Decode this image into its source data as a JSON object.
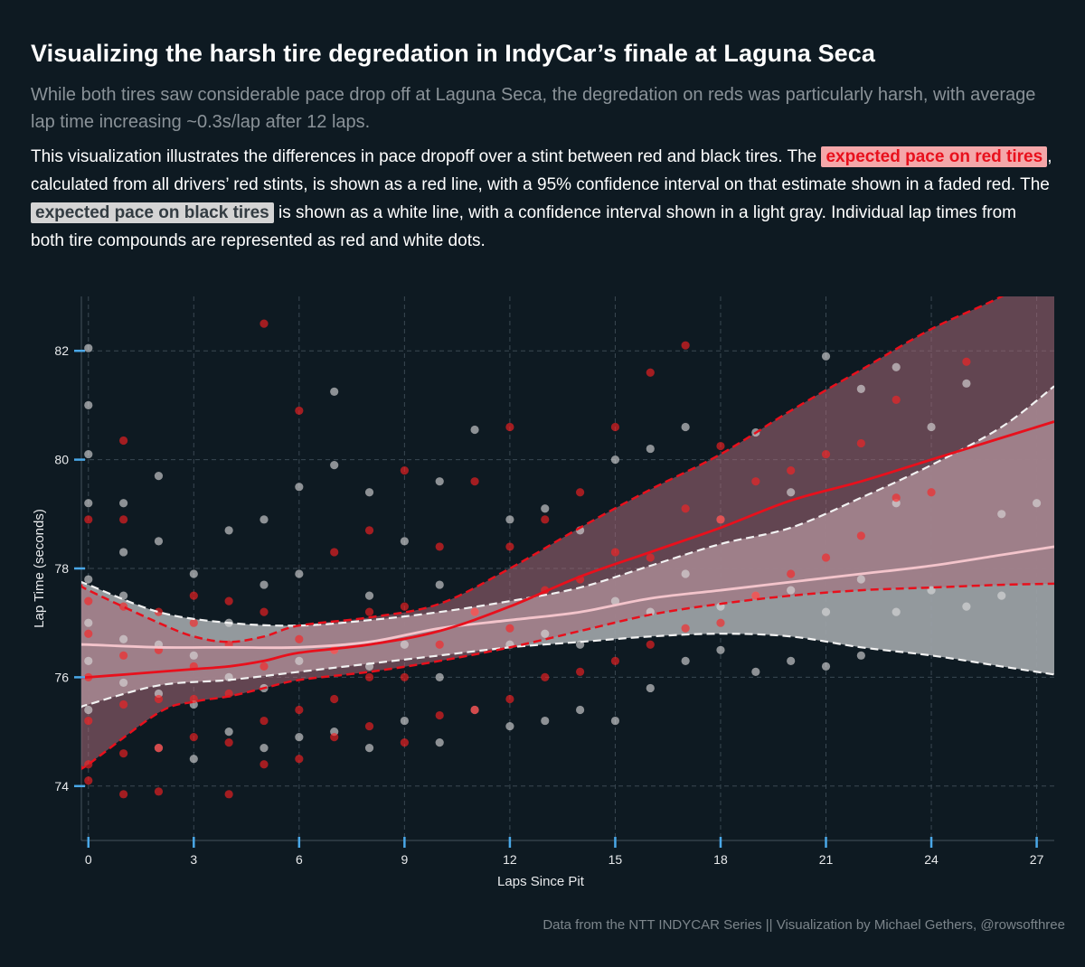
{
  "title": "Visualizing the harsh tire degredation in IndyCar’s finale at Laguna Seca",
  "subtitle": "While both tires saw considerable pace drop off at Laguna Seca, the degredation on reds was particularly harsh, with average lap time increasing ~0.3s/lap after 12 laps.",
  "description": {
    "part1": "This visualization illustrates the differences in pace dropoff over a stint between red and black tires.  The ",
    "red_label": "expected pace on red tires",
    "part2": ", calculated from all drivers’ red stints, is shown as a red line, with a 95% confidence interval on that estimate shown in a faded red.  The ",
    "black_label": "expected pace on black tires",
    "part3": " is shown as a white line, with a confidence interval shown in a light gray.  Individual lap times from both tire compounds are represented as red and white dots."
  },
  "footer": "Data from the NTT INDYCAR Series || Visualization by Michael Gethers, @rowsofthree",
  "colors": {
    "background": "#0e1a22",
    "red_line": "#e8101c",
    "red_ci": "#a86a78",
    "black_line": "#f3c4cb",
    "black_ci": "#9ea4a8",
    "red_dot": "#ff2020",
    "white_dot": "#dcdcdc",
    "axis_tick": "#4aa8e8"
  },
  "chart_data": {
    "type": "scatter",
    "xlabel": "Laps Since Pit",
    "ylabel": "Lap Time (seconds)",
    "xlim": [
      -0.2,
      27.5
    ],
    "ylim": [
      73.0,
      83.0
    ],
    "xticks": [
      0,
      3,
      6,
      9,
      12,
      15,
      18,
      21,
      24,
      27
    ],
    "yticks": [
      74,
      76,
      78,
      80,
      82
    ],
    "grid": true,
    "series": [
      {
        "name": "expected pace on red tires",
        "kind": "smooth_line_ci",
        "x": [
          -0.2,
          0,
          2,
          3,
          4,
          5,
          6,
          8,
          10,
          12,
          14,
          16,
          18,
          20,
          22,
          24,
          26,
          27.5
        ],
        "y": [
          76.0,
          76.0,
          76.1,
          76.15,
          76.2,
          76.3,
          76.45,
          76.6,
          76.85,
          77.3,
          77.85,
          78.3,
          78.75,
          79.25,
          79.6,
          80.0,
          80.4,
          80.7
        ],
        "lower": [
          74.35,
          74.4,
          75.35,
          75.55,
          75.65,
          75.8,
          75.95,
          76.1,
          76.3,
          76.55,
          76.85,
          77.15,
          77.35,
          77.5,
          77.6,
          77.65,
          77.7,
          77.72
        ],
        "upper": [
          77.7,
          77.6,
          77.0,
          76.75,
          76.65,
          76.75,
          76.95,
          77.1,
          77.35,
          78.0,
          78.75,
          79.45,
          80.1,
          80.9,
          81.65,
          82.4,
          83.0,
          83.6
        ]
      },
      {
        "name": "expected pace on black tires",
        "kind": "smooth_line_ci",
        "x": [
          -0.2,
          0,
          2,
          4,
          6,
          8,
          10,
          12,
          14,
          16,
          18,
          20,
          22,
          24,
          26,
          27.5
        ],
        "y": [
          76.6,
          76.6,
          76.55,
          76.55,
          76.55,
          76.65,
          76.9,
          77.05,
          77.2,
          77.45,
          77.6,
          77.75,
          77.9,
          78.05,
          78.25,
          78.4
        ],
        "lower": [
          75.45,
          75.5,
          75.85,
          75.95,
          76.1,
          76.25,
          76.4,
          76.55,
          76.65,
          76.75,
          76.8,
          76.75,
          76.55,
          76.4,
          76.2,
          76.05
        ],
        "upper": [
          77.75,
          77.7,
          77.2,
          77.0,
          76.95,
          77.05,
          77.2,
          77.4,
          77.65,
          78.05,
          78.45,
          78.75,
          79.3,
          79.9,
          80.6,
          81.35
        ]
      },
      {
        "name": "red tire laps",
        "kind": "points",
        "x": [
          0,
          0,
          0,
          0,
          0,
          0,
          0,
          1,
          1,
          1,
          1,
          1,
          1,
          1,
          2,
          2,
          2,
          2,
          2,
          3,
          3,
          3,
          3,
          3,
          4,
          4,
          4,
          4,
          4,
          5,
          5,
          5,
          5,
          5,
          6,
          6,
          6,
          6,
          7,
          7,
          7,
          7,
          8,
          8,
          8,
          8,
          9,
          9,
          9,
          9,
          10,
          10,
          10,
          11,
          11,
          11,
          12,
          12,
          12,
          12,
          13,
          13,
          13,
          14,
          14,
          14,
          15,
          15,
          15,
          16,
          16,
          16,
          17,
          17,
          17,
          18,
          18,
          18,
          19,
          19,
          20,
          20,
          21,
          21,
          22,
          22,
          23,
          23,
          24,
          25
        ],
        "y": [
          74.1,
          74.4,
          75.2,
          76.0,
          76.8,
          77.4,
          78.9,
          73.85,
          74.6,
          75.5,
          76.4,
          77.3,
          78.9,
          80.35,
          73.9,
          74.7,
          75.6,
          76.5,
          77.2,
          74.9,
          75.6,
          76.2,
          77.0,
          77.5,
          73.85,
          74.8,
          75.7,
          76.6,
          77.4,
          74.4,
          75.2,
          76.2,
          77.2,
          82.5,
          74.5,
          75.4,
          76.7,
          80.9,
          74.9,
          75.6,
          76.5,
          78.3,
          75.1,
          76.0,
          77.2,
          78.7,
          74.8,
          76.0,
          77.3,
          79.8,
          75.3,
          76.6,
          78.4,
          75.4,
          77.2,
          79.6,
          75.6,
          76.9,
          78.4,
          80.6,
          76.0,
          77.6,
          78.9,
          76.1,
          77.8,
          79.4,
          76.3,
          78.3,
          80.6,
          76.6,
          78.2,
          81.6,
          76.9,
          79.1,
          82.1,
          77.0,
          78.9,
          80.25,
          77.5,
          79.6,
          77.9,
          79.8,
          78.2,
          80.1,
          78.6,
          80.3,
          79.3,
          81.1,
          79.4,
          81.8
        ]
      },
      {
        "name": "black tire laps",
        "kind": "points",
        "x": [
          0,
          0,
          0,
          0,
          0,
          0,
          0,
          0,
          1,
          1,
          1,
          1,
          1,
          2,
          2,
          2,
          2,
          2,
          3,
          3,
          3,
          3,
          4,
          4,
          4,
          4,
          5,
          5,
          5,
          5,
          6,
          6,
          6,
          6,
          7,
          7,
          7,
          7,
          8,
          8,
          8,
          8,
          9,
          9,
          9,
          10,
          10,
          10,
          10,
          11,
          11,
          11,
          12,
          12,
          12,
          13,
          13,
          13,
          14,
          14,
          14,
          15,
          15,
          15,
          16,
          16,
          16,
          17,
          17,
          17,
          18,
          18,
          18,
          19,
          19,
          19,
          20,
          20,
          20,
          21,
          21,
          21,
          22,
          22,
          22,
          23,
          23,
          23,
          24,
          24,
          25,
          25,
          26,
          26,
          27
        ],
        "y": [
          75.4,
          76.3,
          77.0,
          77.8,
          79.2,
          80.1,
          81.0,
          82.05,
          75.9,
          76.7,
          77.5,
          78.3,
          79.2,
          74.7,
          75.7,
          76.6,
          78.5,
          79.7,
          74.5,
          75.5,
          76.4,
          77.9,
          75.0,
          76.0,
          77.0,
          78.7,
          74.7,
          75.8,
          77.7,
          78.9,
          74.9,
          76.3,
          77.9,
          79.5,
          75.0,
          76.5,
          79.9,
          81.25,
          74.7,
          76.2,
          77.5,
          79.4,
          75.2,
          76.6,
          78.5,
          74.8,
          76.0,
          77.7,
          79.6,
          75.4,
          77.2,
          80.55,
          75.1,
          76.6,
          78.9,
          75.2,
          76.8,
          79.1,
          75.4,
          76.6,
          78.7,
          75.2,
          77.4,
          80.0,
          75.8,
          77.2,
          80.2,
          76.3,
          77.9,
          80.6,
          76.5,
          77.3,
          78.9,
          76.1,
          77.5,
          80.5,
          76.3,
          77.6,
          79.4,
          76.2,
          77.2,
          81.9,
          76.4,
          77.8,
          81.3,
          77.2,
          79.2,
          81.7,
          77.6,
          80.6,
          77.3,
          81.4,
          77.5,
          79.0,
          79.2
        ]
      }
    ]
  }
}
